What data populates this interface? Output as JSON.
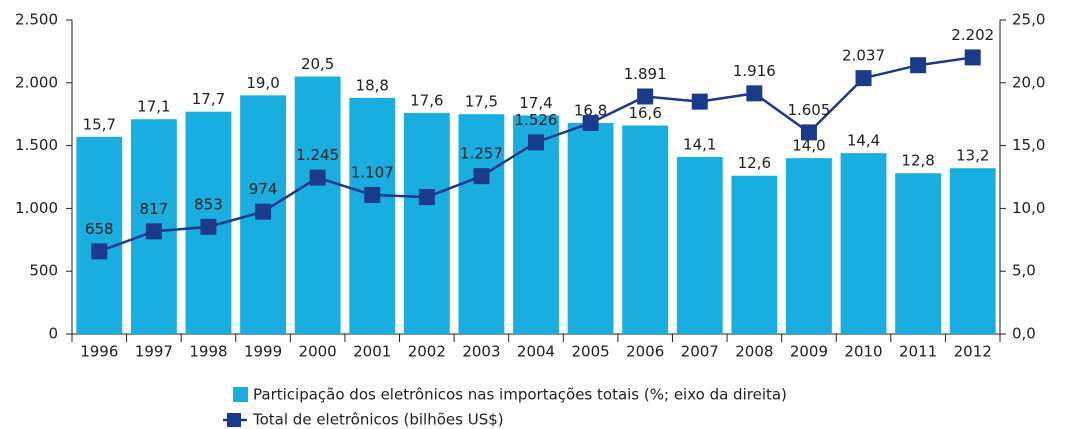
{
  "chart_data": {
    "type": "bar_line",
    "categories": [
      "1996",
      "1997",
      "1998",
      "1999",
      "2000",
      "2001",
      "2002",
      "2003",
      "2004",
      "2005",
      "2006",
      "2007",
      "2008",
      "2009",
      "2010",
      "2011",
      "2012"
    ],
    "series": [
      {
        "name": "Participação dos eletrônicos nas importações totais (%; eixo da direita)",
        "type": "bar",
        "axis": "y2",
        "color": "#1aaee0",
        "values": [
          15.7,
          17.1,
          17.7,
          19.0,
          20.5,
          18.8,
          17.6,
          17.5,
          17.4,
          16.8,
          16.6,
          14.1,
          12.6,
          14.0,
          14.4,
          12.8,
          13.2
        ],
        "value_labels": [
          "15,7",
          "17,1",
          "17,7",
          "19,0",
          "20,5",
          "18,8",
          "17,6",
          "17,5",
          "17,4",
          "16,8",
          "16,6",
          "14,1",
          "12,6",
          "14,0",
          "14,4",
          "12,8",
          "13,2"
        ]
      },
      {
        "name": "Total de eletrônicos (bilhões US$)",
        "type": "line",
        "color": "#1b3a8c",
        "values": [
          658,
          817,
          853,
          974,
          1245,
          1107,
          1090,
          1257,
          1526,
          1680,
          1891,
          1850,
          1916,
          1605,
          2037,
          2140,
          2202
        ],
        "value_labels": [
          "658",
          "817",
          "853",
          "974",
          "1.245",
          "1.107",
          null,
          "1.257",
          "1.526",
          null,
          "1.891",
          null,
          "1.916",
          "1.605",
          "2.037",
          null,
          "2.202"
        ]
      }
    ],
    "ylim": [
      0,
      2500
    ],
    "yticks": [
      0,
      500,
      {
        "value": 1000,
        "label": "1.000"
      },
      {
        "value": 1500,
        "label": "1.500"
      },
      {
        "value": 2000,
        "label": "2.000"
      },
      {
        "value": 2500,
        "label": "2.500"
      }
    ],
    "y2lim": [
      0,
      25
    ],
    "y2ticks": [
      {
        "value": 0,
        "label": "0,0"
      },
      {
        "value": 5,
        "label": "5,0"
      },
      {
        "value": 10,
        "label": "10,0"
      },
      {
        "value": 15,
        "label": "15,0"
      },
      {
        "value": 20,
        "label": "20,0"
      },
      {
        "value": 25,
        "label": "25,0"
      }
    ],
    "grid": true
  }
}
